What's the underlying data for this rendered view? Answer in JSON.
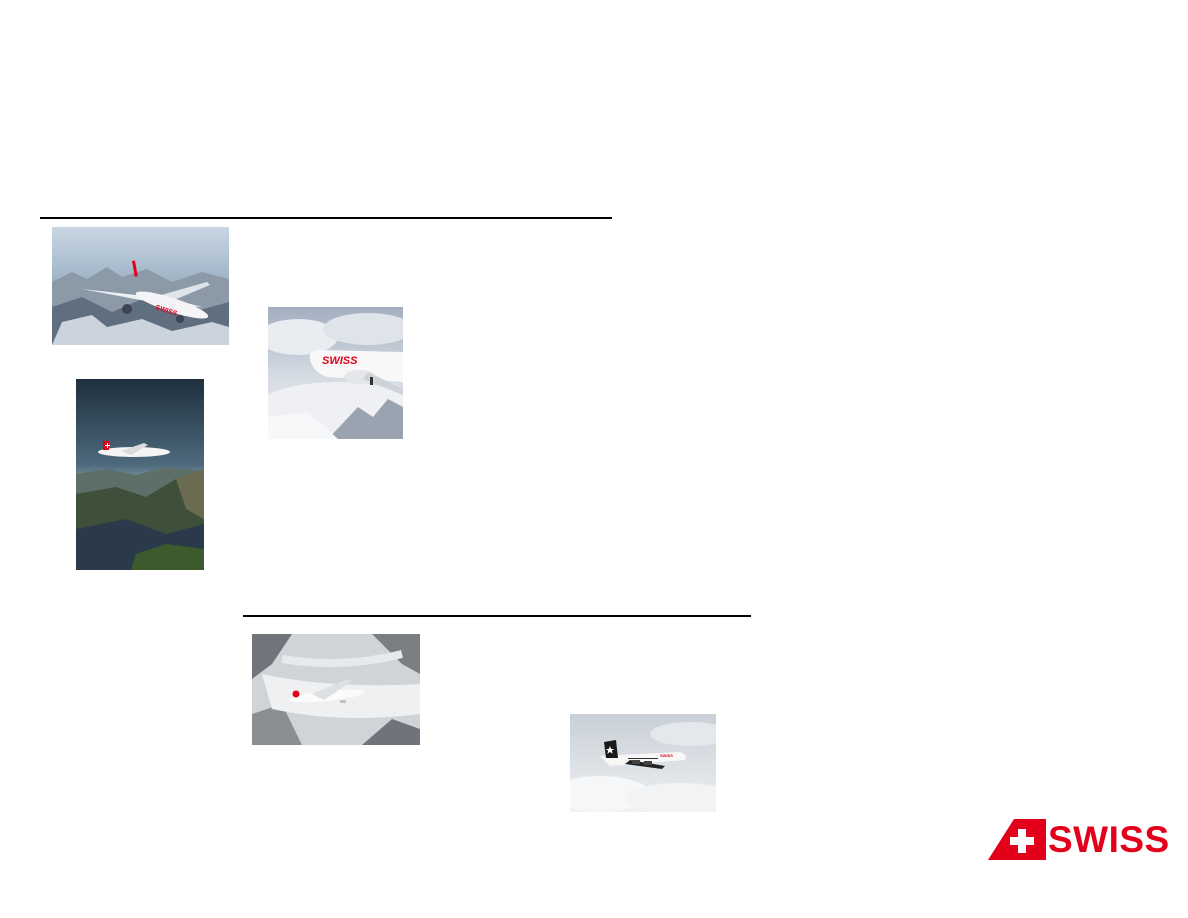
{
  "colors": {
    "brand": "#e2001a",
    "rule": "#000000"
  },
  "photos": [
    {
      "id": "a350-over-alps",
      "livery": "SWISS"
    },
    {
      "id": "a330-clouds",
      "livery": "SWISS"
    },
    {
      "id": "a220-over-lake",
      "livery": "SWISS"
    },
    {
      "id": "a320-over-glacier",
      "livery": "SWISS"
    },
    {
      "id": "avro-rj100-star-alliance",
      "livery": "SWISS"
    }
  ],
  "logo": {
    "text": "SWISS",
    "icon": "swiss-flag-tail-icon"
  }
}
